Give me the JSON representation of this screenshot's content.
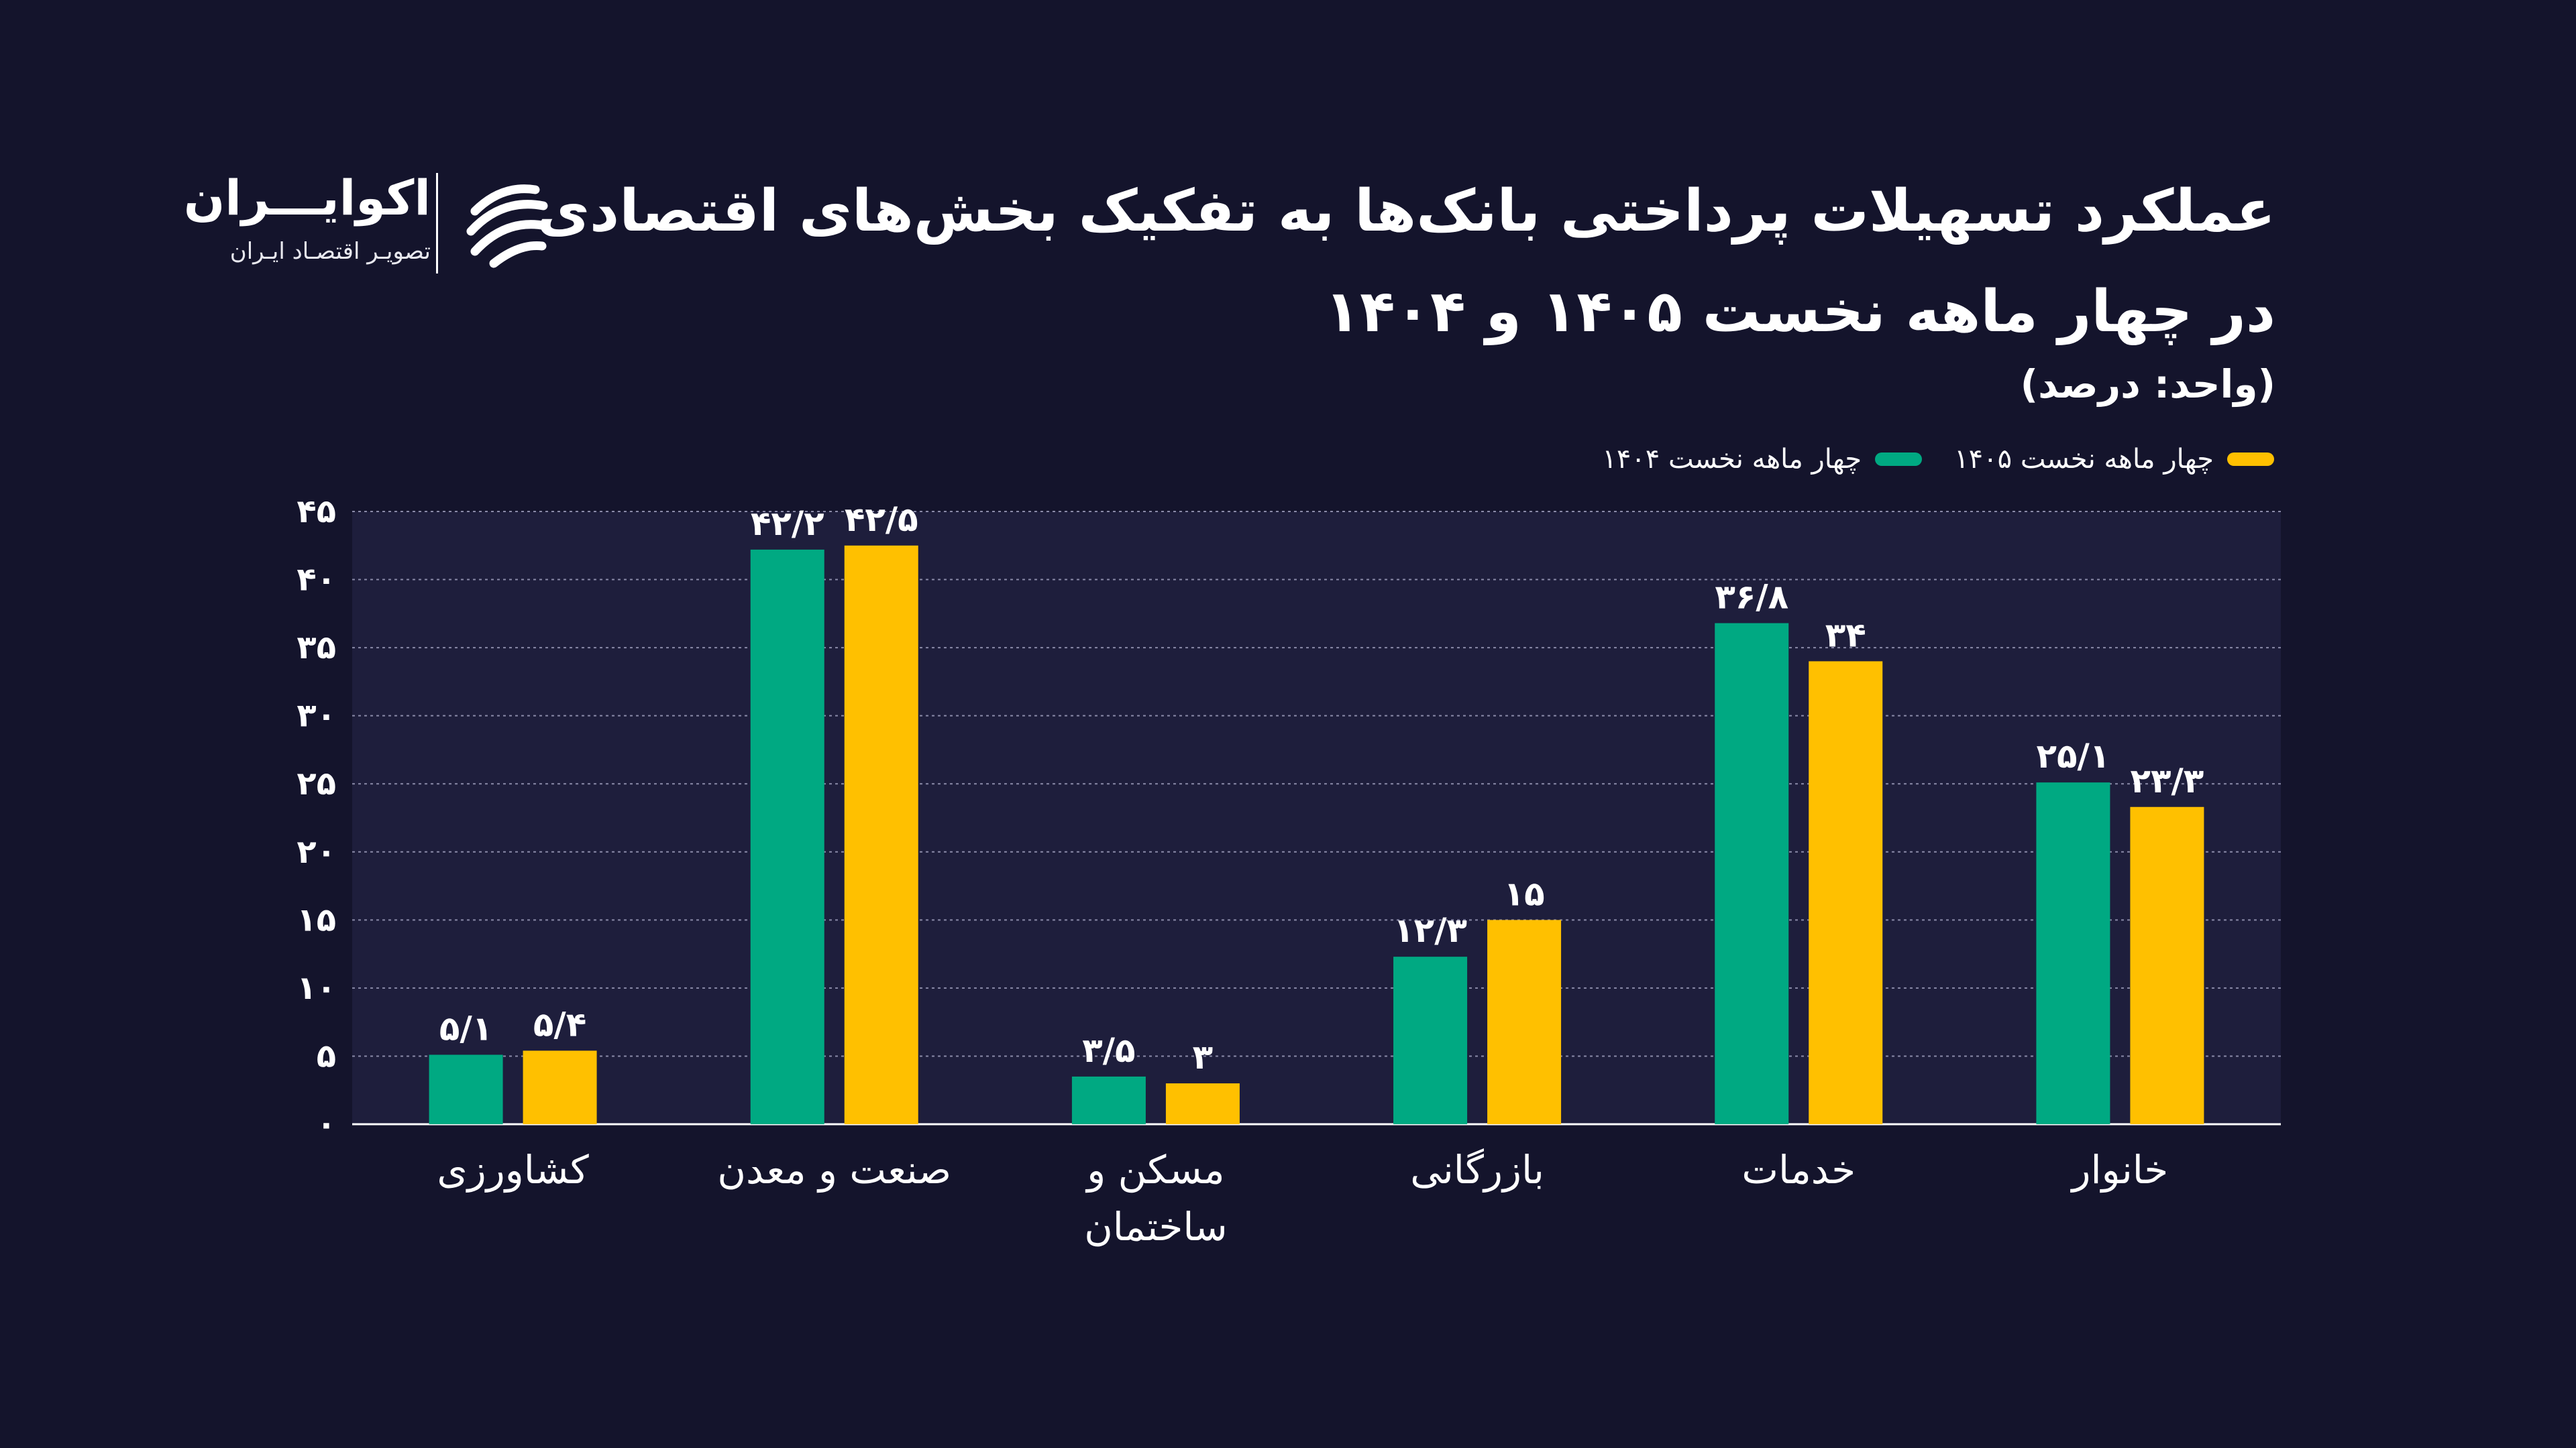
{
  "header": {
    "title_line1": "عملکرد تسهیلات پرداختی بانک‌ها به تفکیک بخش‌های اقتصادی",
    "title_line2": "در چهار ماهه نخست ۱۴۰۵ و ۱۴۰۴",
    "unit": "(واحد: درصد)"
  },
  "brand": {
    "name": "اکوایـــران",
    "tagline": "تصویـر اقتصـاد ایـران"
  },
  "colors": {
    "background": "#14142c",
    "plot_background": "#1e1e3c",
    "green": "#00a982",
    "yellow": "#ffc000"
  },
  "legend": {
    "item1405": "چهار ماهه نخست ۱۴۰۵",
    "item1404": "چهار ماهه نخست ۱۴۰۴"
  },
  "chart_data": {
    "type": "bar",
    "title": "عملکرد تسهیلات پرداختی بانک‌ها به تفکیک بخش‌های اقتصادی در چهار ماهه نخست ۱۴۰۵ و ۱۴۰۴",
    "ylabel": "(واحد: درصد)",
    "ylim": [
      0,
      45
    ],
    "yticks": [
      0,
      5,
      10,
      15,
      20,
      25,
      30,
      35,
      40,
      45
    ],
    "ytick_labels": [
      "۰",
      "۵",
      "۱۰",
      "۱۵",
      "۲۰",
      "۲۵",
      "۳۰",
      "۳۵",
      "۴۰",
      "۴۵"
    ],
    "grid": true,
    "legend_position": "top-right",
    "categories": [
      "کشاورزی",
      "صنعت و معدن",
      "مسکن و ساختمان",
      "بازرگانی",
      "خدمات",
      "خانوار"
    ],
    "category_label_lines": [
      [
        "کشاورزی"
      ],
      [
        "صنعت و معدن"
      ],
      [
        "مسکن و",
        "ساختمان"
      ],
      [
        "بازرگانی"
      ],
      [
        "خدمات"
      ],
      [
        "خانوار"
      ]
    ],
    "series": [
      {
        "name": "چهار ماهه نخست ۱۴۰۴",
        "color": "#00a982",
        "values": [
          5.1,
          42.2,
          3.5,
          12.3,
          36.8,
          25.1
        ],
        "labels": [
          "۵/۱",
          "۴۲/۲",
          "۳/۵",
          "۱۲/۳",
          "۳۶/۸",
          "۲۵/۱"
        ]
      },
      {
        "name": "چهار ماهه نخست ۱۴۰۵",
        "color": "#ffc000",
        "values": [
          5.4,
          42.5,
          3,
          15,
          34,
          23.3
        ],
        "labels": [
          "۵/۴",
          "۴۲/۵",
          "۳",
          "۱۵",
          "۳۴",
          "۲۳/۳"
        ]
      }
    ]
  }
}
